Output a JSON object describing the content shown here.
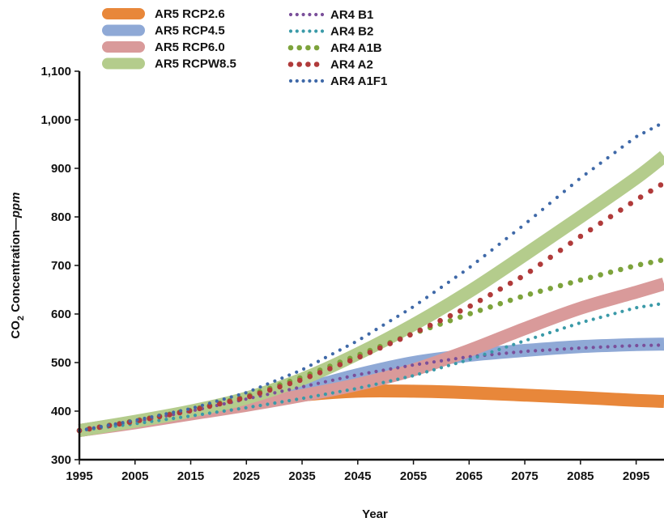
{
  "chart_data": {
    "type": "line",
    "xlabel": "Year",
    "ylabel": {
      "main": "CO",
      "sub": "2",
      "mid": " Concentration—",
      "unit": "ppm"
    },
    "xlim": [
      1995,
      2100
    ],
    "ylim": [
      300,
      1100
    ],
    "xticks": [
      "1995",
      "2005",
      "2015",
      "2025",
      "2035",
      "2045",
      "2055",
      "2065",
      "2075",
      "2085",
      "2095"
    ],
    "yticks": [
      "300",
      "400",
      "500",
      "600",
      "700",
      "800",
      "900",
      "1,000",
      "1,100"
    ],
    "legend_position": "top-left",
    "series": [
      {
        "name": "AR5 RCP2.6",
        "style": "band",
        "color": "#e8873a",
        "x": [
          1995,
          2005,
          2015,
          2025,
          2035,
          2045,
          2055,
          2065,
          2075,
          2085,
          2095,
          2100
        ],
        "y": [
          360,
          378,
          398,
          418,
          433,
          441,
          441,
          438,
          433,
          428,
          422,
          420
        ]
      },
      {
        "name": "AR5 RCP4.5",
        "style": "band",
        "color": "#8fa9d6",
        "x": [
          1995,
          2005,
          2015,
          2025,
          2035,
          2045,
          2055,
          2065,
          2075,
          2085,
          2095,
          2100
        ],
        "y": [
          360,
          378,
          398,
          420,
          445,
          475,
          500,
          515,
          525,
          533,
          537,
          538
        ]
      },
      {
        "name": "AR5 RCP6.0",
        "style": "band",
        "color": "#d99a9a",
        "x": [
          1995,
          2005,
          2015,
          2025,
          2035,
          2045,
          2055,
          2065,
          2075,
          2085,
          2095,
          2100
        ],
        "y": [
          360,
          376,
          394,
          412,
          432,
          455,
          485,
          525,
          570,
          612,
          645,
          662
        ]
      },
      {
        "name": "AR5 RCPW8.5",
        "style": "band",
        "color": "#b4cc8c",
        "x": [
          1995,
          2005,
          2015,
          2025,
          2035,
          2045,
          2055,
          2065,
          2075,
          2085,
          2095,
          2100
        ],
        "y": [
          360,
          379,
          400,
          427,
          466,
          518,
          578,
          646,
          722,
          800,
          880,
          925
        ]
      },
      {
        "name": "AR4 B1",
        "style": "dots-small",
        "color": "#7a4f9a",
        "x": [
          1995,
          2005,
          2015,
          2025,
          2035,
          2045,
          2055,
          2065,
          2075,
          2085,
          2095,
          2100
        ],
        "y": [
          360,
          378,
          400,
          425,
          450,
          475,
          495,
          512,
          523,
          530,
          535,
          536
        ]
      },
      {
        "name": "AR4 B2",
        "style": "dots-small",
        "color": "#3a9aa8",
        "x": [
          1995,
          2005,
          2015,
          2025,
          2035,
          2045,
          2055,
          2065,
          2075,
          2085,
          2095,
          2100
        ],
        "y": [
          360,
          374,
          390,
          407,
          426,
          447,
          473,
          506,
          545,
          582,
          613,
          622
        ]
      },
      {
        "name": "AR4 A1B",
        "style": "dots-large",
        "color": "#7da33c",
        "x": [
          1995,
          2005,
          2015,
          2025,
          2035,
          2045,
          2055,
          2065,
          2075,
          2085,
          2095,
          2100
        ],
        "y": [
          360,
          380,
          402,
          430,
          470,
          515,
          560,
          600,
          638,
          670,
          700,
          712
        ]
      },
      {
        "name": "AR4 A2",
        "style": "dots-large",
        "color": "#b03a3a",
        "x": [
          1995,
          2005,
          2015,
          2025,
          2035,
          2045,
          2055,
          2065,
          2075,
          2085,
          2095,
          2100
        ],
        "y": [
          360,
          379,
          401,
          428,
          465,
          510,
          560,
          615,
          680,
          760,
          835,
          870
        ]
      },
      {
        "name": "AR4 A1F1",
        "style": "dots-small",
        "color": "#3f69a8",
        "x": [
          1995,
          2005,
          2015,
          2025,
          2035,
          2045,
          2055,
          2065,
          2075,
          2085,
          2095,
          2100
        ],
        "y": [
          360,
          381,
          405,
          438,
          485,
          545,
          615,
          695,
          785,
          880,
          965,
          995
        ]
      }
    ]
  }
}
